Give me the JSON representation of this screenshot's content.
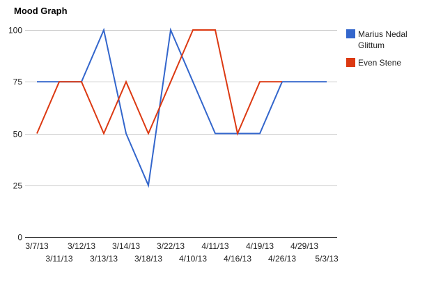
{
  "chart_data": {
    "type": "line",
    "title": "Mood Graph",
    "xlabel": "",
    "ylabel": "",
    "categories": [
      "3/7/13",
      "3/11/13",
      "3/12/13",
      "3/13/13",
      "3/14/13",
      "3/18/13",
      "3/22/13",
      "4/10/13",
      "4/11/13",
      "4/16/13",
      "4/19/13",
      "4/26/13",
      "4/29/13",
      "5/3/13"
    ],
    "ylim": [
      0,
      100
    ],
    "yticks": [
      0,
      25,
      50,
      75,
      100
    ],
    "grid": true,
    "legend_position": "right",
    "series": [
      {
        "name": "Marius Nedal Glittum",
        "name_lines": [
          "Marius Nedal",
          "Glittum"
        ],
        "color": "#3366cc",
        "values": [
          75,
          75,
          75,
          100,
          50,
          25,
          100,
          75,
          50,
          50,
          50,
          75,
          75,
          75
        ]
      },
      {
        "name": "Even Stene",
        "name_lines": [
          "Even Stene"
        ],
        "color": "#dc3912",
        "values": [
          50,
          75,
          75,
          50,
          75,
          50,
          75,
          100,
          100,
          50,
          75,
          75,
          null,
          null
        ]
      }
    ]
  }
}
